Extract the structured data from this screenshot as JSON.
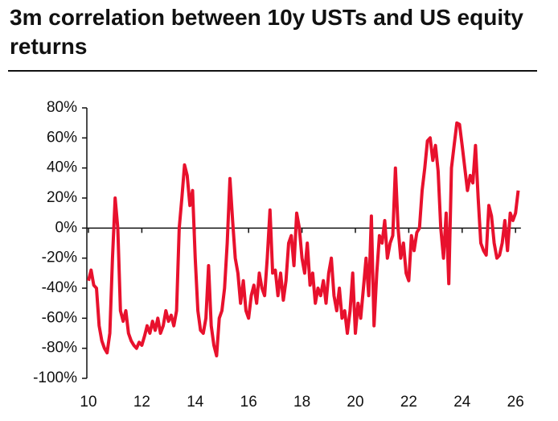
{
  "chart_data": {
    "type": "line",
    "title": "3m correlation between 10y USTs and US equity returns",
    "color": "#e8112d",
    "x": [
      10.0,
      10.1,
      10.2,
      10.3,
      10.4,
      10.5,
      10.6,
      10.7,
      10.8,
      10.9,
      11.0,
      11.1,
      11.2,
      11.3,
      11.4,
      11.5,
      11.6,
      11.7,
      11.8,
      11.9,
      12.0,
      12.1,
      12.2,
      12.3,
      12.4,
      12.5,
      12.6,
      12.7,
      12.8,
      12.9,
      13.0,
      13.1,
      13.2,
      13.3,
      13.4,
      13.5,
      13.6,
      13.7,
      13.8,
      13.9,
      14.0,
      14.1,
      14.2,
      14.3,
      14.4,
      14.5,
      14.6,
      14.7,
      14.8,
      14.9,
      15.0,
      15.1,
      15.2,
      15.3,
      15.4,
      15.5,
      15.6,
      15.7,
      15.8,
      15.9,
      16.0,
      16.1,
      16.2,
      16.3,
      16.4,
      16.5,
      16.6,
      16.7,
      16.8,
      16.9,
      17.0,
      17.1,
      17.2,
      17.3,
      17.4,
      17.5,
      17.6,
      17.7,
      17.8,
      17.9,
      18.0,
      18.1,
      18.2,
      18.3,
      18.4,
      18.5,
      18.6,
      18.7,
      18.8,
      18.9,
      19.0,
      19.1,
      19.2,
      19.3,
      19.4,
      19.5,
      19.6,
      19.7,
      19.8,
      19.9,
      20.0,
      20.1,
      20.2,
      20.3,
      20.4,
      20.5,
      20.6,
      20.7,
      20.8,
      20.9,
      21.0,
      21.1,
      21.2,
      21.3,
      21.4,
      21.5,
      21.6,
      21.7,
      21.8,
      21.9,
      22.0,
      22.1,
      22.2,
      22.3,
      22.4,
      22.5,
      22.6,
      22.7,
      22.8,
      22.9,
      23.0,
      23.1,
      23.2,
      23.3,
      23.4,
      23.5,
      23.6,
      23.7,
      23.8,
      23.9,
      24.0,
      24.1,
      24.2,
      24.3,
      24.4,
      24.5,
      24.6,
      24.7,
      24.8,
      24.9,
      25.0,
      25.1,
      25.2,
      25.3,
      25.4,
      25.5,
      25.6,
      25.7,
      25.8,
      25.9,
      26.0,
      26.1
    ],
    "values": [
      -35,
      -28,
      -38,
      -40,
      -65,
      -75,
      -80,
      -83,
      -70,
      -20,
      20,
      0,
      -55,
      -62,
      -55,
      -70,
      -75,
      -78,
      -80,
      -76,
      -78,
      -72,
      -65,
      -70,
      -62,
      -68,
      -60,
      -70,
      -65,
      -55,
      -62,
      -58,
      -65,
      -55,
      0,
      20,
      42,
      35,
      15,
      25,
      -20,
      -55,
      -68,
      -70,
      -60,
      -25,
      -65,
      -78,
      -85,
      -60,
      -55,
      -40,
      -10,
      33,
      5,
      -20,
      -30,
      -50,
      -35,
      -55,
      -60,
      -45,
      -38,
      -50,
      -30,
      -40,
      -45,
      -20,
      12,
      -30,
      -28,
      -45,
      -30,
      -48,
      -35,
      -10,
      -5,
      -25,
      10,
      0,
      -20,
      -30,
      -10,
      -38,
      -30,
      -50,
      -40,
      -45,
      -35,
      -50,
      -30,
      -20,
      -45,
      -55,
      -40,
      -60,
      -55,
      -70,
      -55,
      -30,
      -70,
      -50,
      -60,
      -40,
      -20,
      -45,
      8,
      -65,
      -30,
      -5,
      -10,
      5,
      -20,
      -10,
      -5,
      40,
      0,
      -20,
      -10,
      -30,
      -35,
      -5,
      -15,
      -3,
      0,
      25,
      40,
      58,
      60,
      45,
      55,
      38,
      0,
      -20,
      10,
      -37,
      40,
      55,
      70,
      69,
      55,
      40,
      25,
      35,
      30,
      55,
      20,
      -10,
      -15,
      -18,
      15,
      8,
      -10,
      -20,
      -18,
      -10,
      5,
      -15,
      10,
      5,
      10,
      25
    ],
    "xlim": [
      10,
      26.2
    ],
    "xticks": [
      10,
      12,
      14,
      16,
      18,
      20,
      22,
      24,
      26
    ],
    "ylim": [
      -100,
      80
    ],
    "yticks": [
      {
        "value": -100,
        "label": "-100%"
      },
      {
        "value": -80,
        "label": "-80%"
      },
      {
        "value": -60,
        "label": "-60%"
      },
      {
        "value": -40,
        "label": "-40%"
      },
      {
        "value": -20,
        "label": "-20%"
      },
      {
        "value": 0,
        "label": "0%"
      },
      {
        "value": 20,
        "label": "20%"
      },
      {
        "value": 40,
        "label": "40%"
      },
      {
        "value": 60,
        "label": "60%"
      },
      {
        "value": 80,
        "label": "80%"
      }
    ]
  }
}
